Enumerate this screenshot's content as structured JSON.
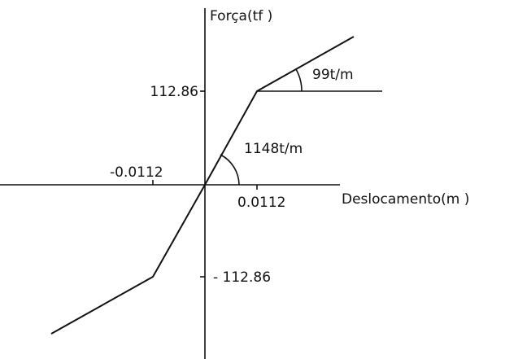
{
  "axes": {
    "y_label": "Força(tf )",
    "x_label": "Deslocamento(m )"
  },
  "labels": {
    "y_pos": "112.86",
    "y_neg": "- 112.86",
    "x_pos": "0.0112",
    "x_neg": "-0.0112",
    "stiffness_elastic": "1148t/m",
    "stiffness_plastic": "99t/m"
  }
}
